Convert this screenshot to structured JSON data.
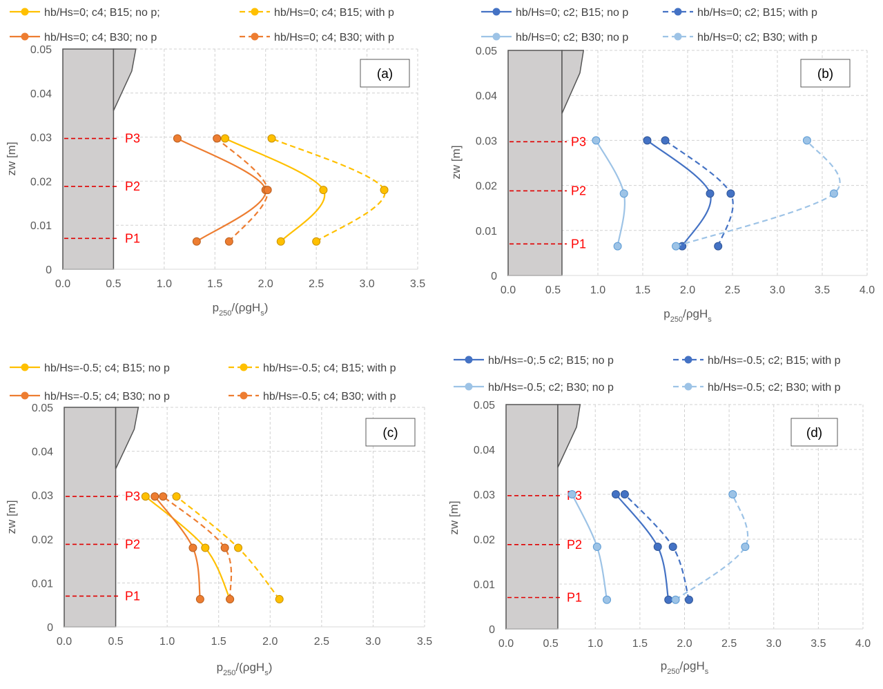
{
  "chart_data": [
    {
      "type": "line",
      "panel_label": "(a)",
      "xlabel": "p250/(ρgHs)",
      "ylabel": "zw [m]",
      "xlim": [
        0,
        3.5
      ],
      "ylim": [
        0,
        0.05
      ],
      "x_ticks": [
        "0.0",
        "0.5",
        "1.0",
        "1.5",
        "2.0",
        "2.5",
        "3.0",
        "3.5"
      ],
      "y_ticks": [
        "0",
        "0.01",
        "0.02",
        "0.03",
        "0.04",
        "0.05"
      ],
      "grid": true,
      "legend_position": "top",
      "probes": [
        {
          "label": "P3",
          "z": 0.0297
        },
        {
          "label": "P2",
          "z": 0.0188
        },
        {
          "label": "P1",
          "z": 0.007
        }
      ],
      "series": [
        {
          "name": "hb/Hs=0; c4; B15; no p;",
          "color": "#FFC000",
          "dashed": false,
          "x": [
            2.15,
            2.57,
            1.6
          ],
          "y": [
            0.0063,
            0.018,
            0.0297
          ]
        },
        {
          "name": "hb/Hs=0; c4; B15; with p",
          "color": "#FFC000",
          "dashed": true,
          "x": [
            2.5,
            3.17,
            2.06
          ],
          "y": [
            0.0063,
            0.018,
            0.0297
          ]
        },
        {
          "name": "hb/Hs=0; c4; B30; no p",
          "color": "#ED7D31",
          "dashed": false,
          "x": [
            1.32,
            2.0,
            1.13
          ],
          "y": [
            0.0063,
            0.018,
            0.0297
          ]
        },
        {
          "name": "hb/Hs=0; c4; B30; with p",
          "color": "#ED7D31",
          "dashed": true,
          "x": [
            1.64,
            2.02,
            1.52
          ],
          "y": [
            0.0063,
            0.018,
            0.0297
          ]
        }
      ]
    },
    {
      "type": "line",
      "panel_label": "(b)",
      "xlabel": "p250/ρgHs",
      "ylabel": "zw [m]",
      "xlim": [
        0,
        4.0
      ],
      "ylim": [
        0,
        0.05
      ],
      "x_ticks": [
        "0.0",
        "0.5",
        "1.0",
        "1.5",
        "2.0",
        "2.5",
        "3.0",
        "3.5",
        "4.0"
      ],
      "y_ticks": [
        "0",
        "0.01",
        "0.02",
        "0.03",
        "0.04",
        "0.05"
      ],
      "grid": true,
      "legend_position": "top",
      "probes": [
        {
          "label": "P3",
          "z": 0.0297
        },
        {
          "label": "P2",
          "z": 0.0188
        },
        {
          "label": "P1",
          "z": 0.007
        }
      ],
      "series": [
        {
          "name": "hb/Hs=0; c2; B15; no p",
          "color": "#4472C4",
          "dashed": false,
          "x": [
            1.94,
            2.25,
            1.55
          ],
          "y": [
            0.0065,
            0.0182,
            0.03
          ]
        },
        {
          "name": "hb/Hs=0; c2; B15; with p",
          "color": "#4472C4",
          "dashed": true,
          "x": [
            2.34,
            2.48,
            1.75
          ],
          "y": [
            0.0065,
            0.0182,
            0.03
          ]
        },
        {
          "name": "hb/Hs=0; c2; B30; no p",
          "color": "#9DC3E6",
          "dashed": false,
          "x": [
            1.22,
            1.29,
            0.98
          ],
          "y": [
            0.0065,
            0.0182,
            0.03
          ]
        },
        {
          "name": "hb/Hs=0; c2; B30; with p",
          "color": "#9DC3E6",
          "dashed": true,
          "x": [
            1.87,
            3.63,
            3.33
          ],
          "y": [
            0.0065,
            0.0182,
            0.03
          ]
        }
      ]
    },
    {
      "type": "line",
      "panel_label": "(c)",
      "xlabel": "p250/(ρgHs)",
      "ylabel": "zw [m]",
      "xlim": [
        0,
        3.5
      ],
      "ylim": [
        0,
        0.05
      ],
      "x_ticks": [
        "0.0",
        "0.5",
        "1.0",
        "1.5",
        "2.0",
        "2.5",
        "3.0",
        "3.5"
      ],
      "y_ticks": [
        "0",
        "0.01",
        "0.02",
        "0.03",
        "0.04",
        "0.05"
      ],
      "grid": true,
      "legend_position": "top",
      "probes": [
        {
          "label": "P3",
          "z": 0.0297
        },
        {
          "label": "P2",
          "z": 0.0188
        },
        {
          "label": "P1",
          "z": 0.007
        }
      ],
      "series": [
        {
          "name": "hb/Hs=-0.5; c4; B15; no p",
          "color": "#FFC000",
          "dashed": false,
          "x": [
            1.61,
            1.37,
            0.79
          ],
          "y": [
            0.0063,
            0.018,
            0.0297
          ]
        },
        {
          "name": "hb/Hs=-0.5; c4; B15; with p",
          "color": "#FFC000",
          "dashed": true,
          "x": [
            2.09,
            1.69,
            1.09
          ],
          "y": [
            0.0063,
            0.018,
            0.0297
          ]
        },
        {
          "name": "hb/Hs=-0.5; c4; B30; no p",
          "color": "#ED7D31",
          "dashed": false,
          "x": [
            1.32,
            1.25,
            0.88
          ],
          "y": [
            0.0063,
            0.018,
            0.0297
          ]
        },
        {
          "name": "hb/Hs=-0.5; c4; B30; with p",
          "color": "#ED7D31",
          "dashed": true,
          "x": [
            1.61,
            1.56,
            0.96
          ],
          "y": [
            0.0063,
            0.018,
            0.0297
          ]
        }
      ]
    },
    {
      "type": "line",
      "panel_label": "(d)",
      "xlabel": "p250/ρgHs",
      "ylabel": "zw [m]",
      "xlim": [
        0,
        4.0
      ],
      "ylim": [
        0,
        0.05
      ],
      "x_ticks": [
        "0.0",
        "0.5",
        "1.0",
        "1.5",
        "2.0",
        "2.5",
        "3.0",
        "3.5",
        "4.0"
      ],
      "y_ticks": [
        "0",
        "0.01",
        "0.02",
        "0.03",
        "0.04",
        "0.05"
      ],
      "grid": true,
      "legend_position": "top",
      "probes": [
        {
          "label": "P3",
          "z": 0.0297
        },
        {
          "label": "P2",
          "z": 0.0188
        },
        {
          "label": "P1",
          "z": 0.007
        }
      ],
      "series": [
        {
          "name": "hb/Hs=-0;.5 c2; B15; no p",
          "color": "#4472C4",
          "dashed": false,
          "x": [
            1.82,
            1.7,
            1.23
          ],
          "y": [
            0.0065,
            0.0183,
            0.03
          ]
        },
        {
          "name": "hb/Hs=-0.5; c2; B15; with p",
          "color": "#4472C4",
          "dashed": true,
          "x": [
            2.05,
            1.87,
            1.33
          ],
          "y": [
            0.0065,
            0.0183,
            0.03
          ]
        },
        {
          "name": "hb/Hs=-0.5; c2; B30; no p",
          "color": "#9DC3E6",
          "dashed": false,
          "x": [
            1.13,
            1.02,
            0.74
          ],
          "y": [
            0.0065,
            0.0183,
            0.03
          ]
        },
        {
          "name": "hb/Hs=-0.5; c2; B30; with p",
          "color": "#9DC3E6",
          "dashed": true,
          "x": [
            1.9,
            2.68,
            2.54
          ],
          "y": [
            0.0065,
            0.0183,
            0.03
          ]
        }
      ]
    }
  ]
}
